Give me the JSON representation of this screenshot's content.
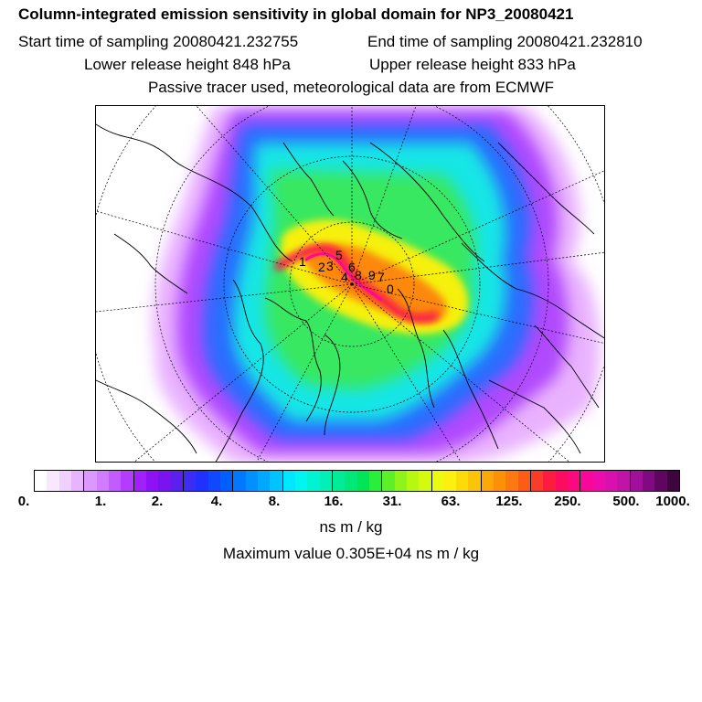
{
  "header": {
    "title": "Column-integrated emission sensitivity in global domain for NP3_20080421",
    "start": "Start time of sampling 20080421.232755",
    "end": "End time of sampling 20080421.232810",
    "lower": "Lower release height  848 hPa",
    "upper": "Upper release height  833 hPa",
    "tracer": "Passive tracer used, meteorological data are from ECMWF"
  },
  "map": {
    "release_labels": [
      "1",
      "2",
      "3",
      "5",
      "6",
      "4",
      "8",
      "9",
      "7",
      "0"
    ]
  },
  "colorbar": {
    "colors": [
      "#ffffff",
      "#f8e8ff",
      "#f0d0ff",
      "#e8b4ff",
      "#dc98ff",
      "#d07cff",
      "#c35cff",
      "#b43cff",
      "#a21fff",
      "#8f12f7",
      "#7a14ee",
      "#5a20ee",
      "#3d2cf4",
      "#2030ff",
      "#1048ff",
      "#0060ff",
      "#0078ff",
      "#0090ff",
      "#00a8ff",
      "#00c4ff",
      "#00e8ff",
      "#00f4f0",
      "#00f4d4",
      "#00f0b8",
      "#00ec98",
      "#00e878",
      "#00e458",
      "#28ee3c",
      "#5cf028",
      "#90f418",
      "#b8f810",
      "#d4fa10",
      "#ecfc10",
      "#fcf010",
      "#fcdc08",
      "#fcc408",
      "#fca808",
      "#fc9008",
      "#fc7810",
      "#fc5c18",
      "#fc3c28",
      "#fc1c40",
      "#fc0c60",
      "#fc0880",
      "#f8089a",
      "#ec0cac",
      "#d810b0",
      "#c014a8",
      "#a0109a",
      "#800a80",
      "#600660",
      "#400440"
    ],
    "ticks": [
      "0.",
      "1.",
      "2.",
      "4.",
      "8.",
      "16.",
      "31.",
      "63.",
      "125.",
      "250.",
      "500.",
      "1000."
    ]
  },
  "units": "ns m / kg",
  "max_value": "Maximum value  0.305E+04 ns m / kg"
}
